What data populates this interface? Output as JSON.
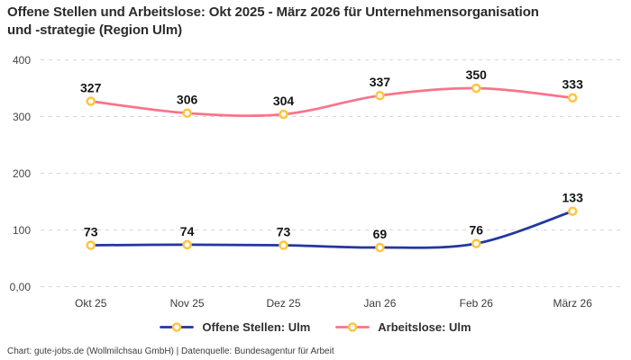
{
  "title": {
    "lines": [
      "Offene Stellen und Arbeitslose: Okt 2025 - März 2026 für Unternehmensorganisation",
      "und -strategie (Region Ulm)"
    ]
  },
  "footer": "Chart: gute-jobs.de (Wollmilchsau GmbH) | Datenquelle: Bundesagentur für Arbeit",
  "chart_data": {
    "type": "line",
    "title": "Offene Stellen und Arbeitslose: Okt 2025 - März 2026 für Unternehmensorganisation und -strategie (Region Ulm)",
    "categories": [
      "Okt 25",
      "Nov 25",
      "Dez 25",
      "Jan 26",
      "Feb 26",
      "März 26"
    ],
    "series": [
      {
        "name": "Offene Stellen: Ulm",
        "color": "#2337a0",
        "values": [
          73,
          74,
          73,
          69,
          76,
          133
        ]
      },
      {
        "name": "Arbeitslose: Ulm",
        "color": "#f8748b",
        "values": [
          327,
          306,
          304,
          337,
          350,
          333
        ]
      }
    ],
    "y_ticks": [
      "0,00",
      "100",
      "200",
      "300",
      "400"
    ],
    "y_tick_values": [
      0,
      100,
      200,
      300,
      400
    ],
    "ylim": [
      0,
      400
    ],
    "xlabel": "",
    "ylabel": "",
    "grid": "horizontal-dashed",
    "line_style": "smooth",
    "legend_position": "bottom",
    "marker": {
      "shape": "circle",
      "fill": "#ffffff",
      "stroke": "#ffc53d"
    },
    "grid_color": "#d6d6d6"
  }
}
